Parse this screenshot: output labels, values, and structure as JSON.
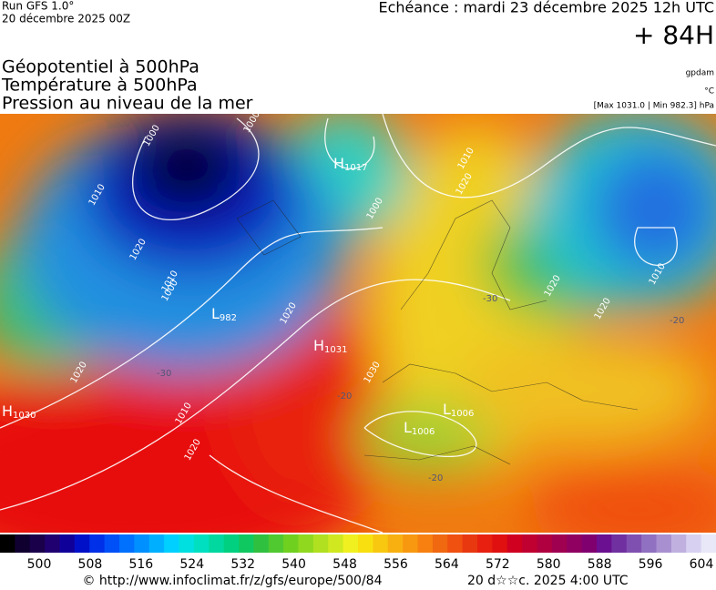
{
  "header": {
    "run": "Run GFS 1.0°",
    "run_date": "20 décembre 2025 00Z",
    "echeance": "Echéance : mardi 23 décembre 2025 12h UTC",
    "lead": "+ 84H"
  },
  "legend": {
    "lines": [
      "Géopotentiel à 500hPa",
      "Température à 500hPa",
      "Pression au niveau de la mer"
    ],
    "units": [
      "gpdam",
      "°C",
      "[Max 1031.0 | Min 982.3] hPa"
    ]
  },
  "map": {
    "pressure_centers": [
      {
        "type": "H",
        "value": "1017"
      },
      {
        "type": "L",
        "value": "982"
      },
      {
        "type": "H",
        "value": "1031"
      },
      {
        "type": "H",
        "value": "1030"
      },
      {
        "type": "L",
        "value": "1006"
      },
      {
        "type": "L",
        "value": "1006"
      }
    ],
    "isobar_labels": [
      "1000",
      "1000",
      "1010",
      "1020",
      "1020",
      "1010",
      "1000",
      "1020",
      "1010",
      "1020",
      "1030",
      "1010",
      "1020",
      "1020",
      "1010",
      "1020",
      "1000"
    ],
    "temp_labels": [
      "-30",
      "-30",
      "-20",
      "-20",
      "-20"
    ]
  },
  "colorbar": {
    "ticks": [
      500,
      508,
      516,
      524,
      532,
      540,
      548,
      556,
      564,
      572,
      580,
      588,
      596,
      604
    ]
  },
  "footer": {
    "url": "© http://www.infoclimat.fr/z/gfs/europe/500/84",
    "date": "20 d☆☆c. 2025  4:00 UTC"
  }
}
